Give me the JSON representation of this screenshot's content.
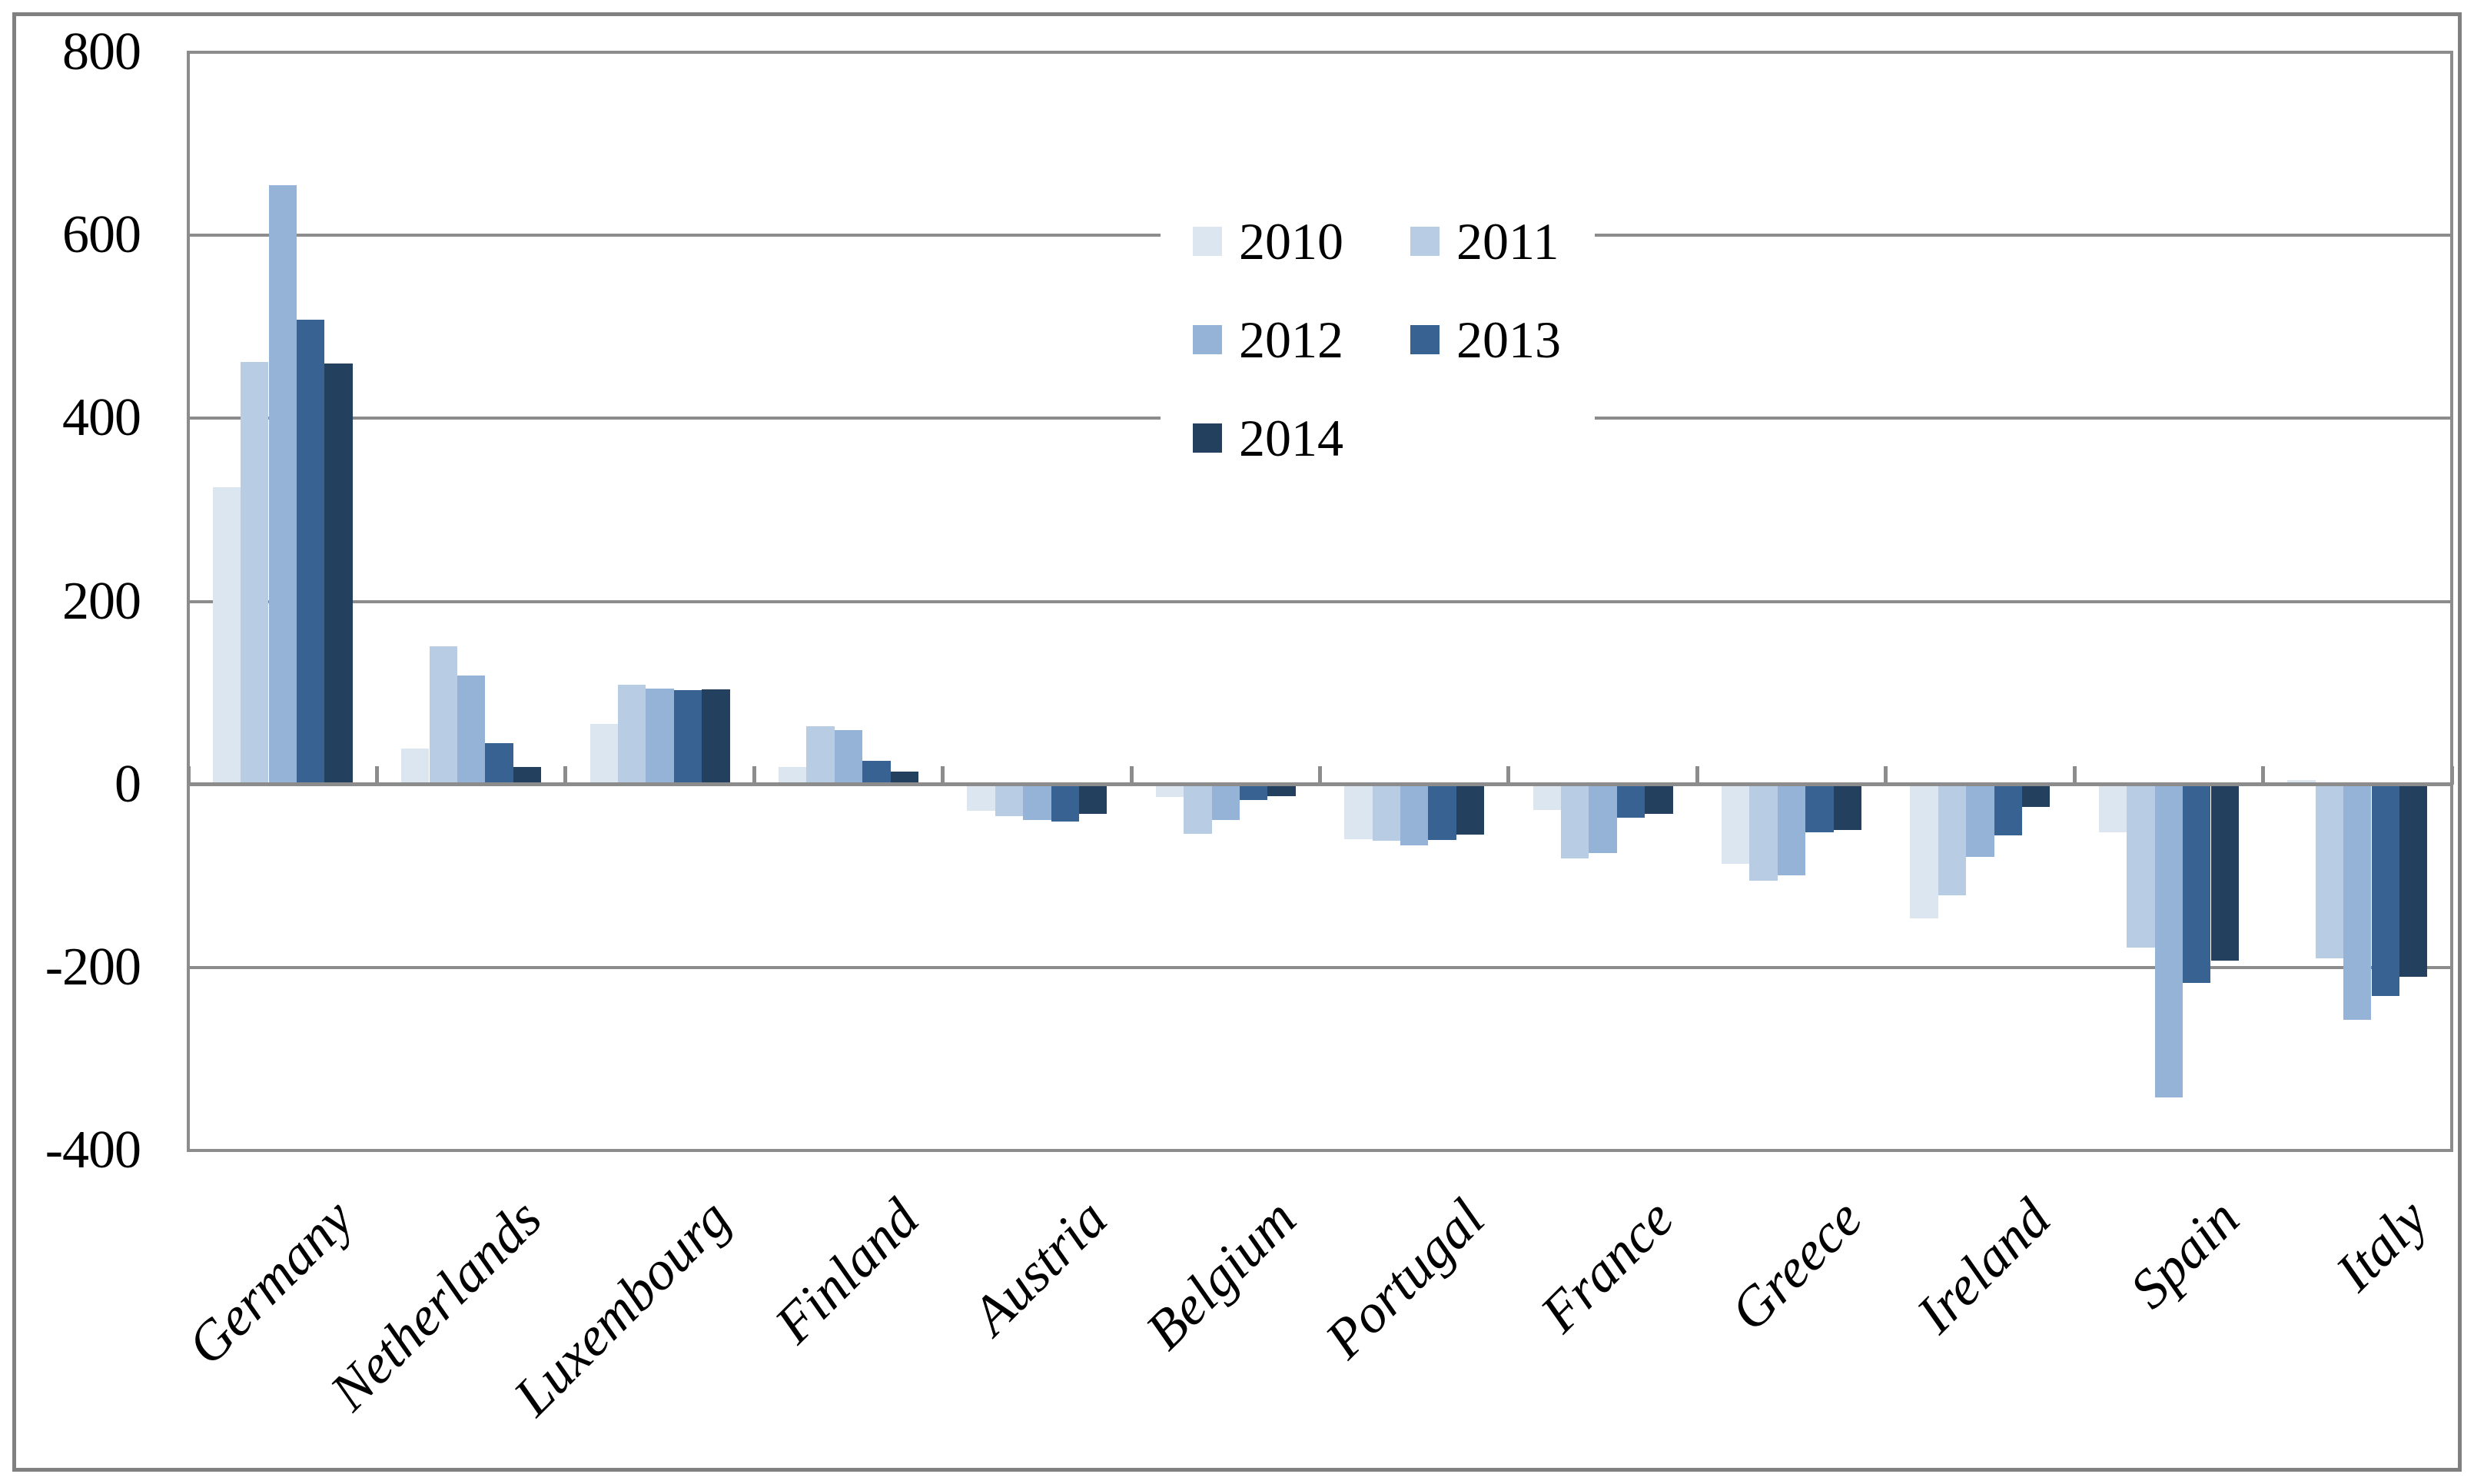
{
  "chart_data": {
    "type": "bar",
    "title": "",
    "xlabel": "",
    "ylabel": "",
    "categories": [
      "Germany",
      "Netherlands",
      "Luxembourg",
      "Finland",
      "Austria",
      "Belgium",
      "Portugal",
      "France",
      "Greece",
      "Ireland",
      "Spain",
      "Italy"
    ],
    "series": [
      {
        "name": "2010",
        "color": "#DCE6F1",
        "values": [
          325,
          39,
          66,
          19,
          -29,
          -14,
          -60,
          -28,
          -87,
          -146,
          -52,
          5
        ]
      },
      {
        "name": "2011",
        "color": "#B8CCE4",
        "values": [
          462,
          151,
          109,
          64,
          -35,
          -54,
          -62,
          -81,
          -105,
          -121,
          -178,
          -190
        ]
      },
      {
        "name": "2012",
        "color": "#95B3D7",
        "values": [
          655,
          119,
          105,
          59,
          -39,
          -39,
          -67,
          -75,
          -99,
          -79,
          -342,
          -257
        ]
      },
      {
        "name": "2013",
        "color": "#376291",
        "values": [
          508,
          45,
          103,
          26,
          -41,
          -17,
          -61,
          -36,
          -52,
          -56,
          -217,
          -231
        ]
      },
      {
        "name": "2014",
        "color": "#24405F",
        "values": [
          460,
          19,
          104,
          14,
          -32,
          -13,
          -55,
          -32,
          -50,
          -25,
          -193,
          -210
        ]
      }
    ],
    "y_axis": {
      "min": -400,
      "max": 800,
      "step": 200,
      "tick_labels": [
        "800",
        "600",
        "400",
        "200",
        "0",
        "-200",
        "-400"
      ]
    },
    "x_axis": {
      "label_rotation_deg": -45,
      "label_style": "italic"
    },
    "legend": {
      "labels": [
        "2010",
        "2011",
        "2012",
        "2013",
        "2014"
      ],
      "position": "inside-top-center",
      "columns": 2
    },
    "grid": true,
    "ylim": [
      -400,
      800
    ]
  },
  "styles": {
    "gridline_color": "#8C8C8C",
    "axis_color": "#8C8C8C",
    "border_color": "#808080",
    "background": "#FFFFFF",
    "text_color": "#000000"
  }
}
